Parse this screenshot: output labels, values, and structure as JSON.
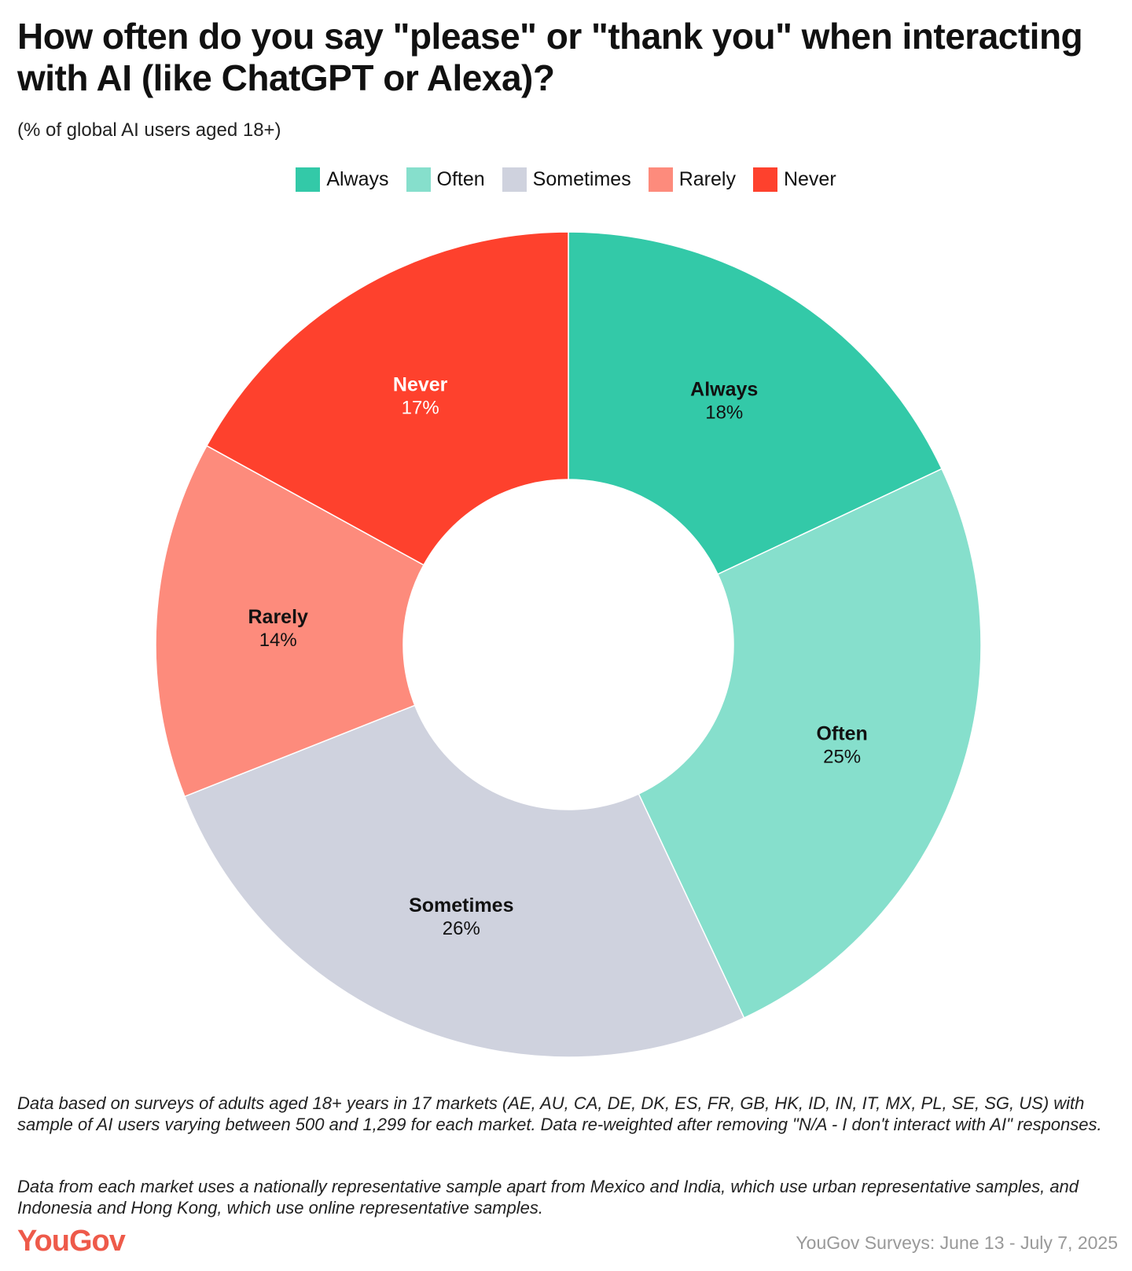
{
  "chart_data": {
    "type": "pie",
    "donut": true,
    "title": "How often do you say \"please\" or \"thank you\" when interacting with AI (like ChatGPT or Alexa)?",
    "subtitle": "(% of global AI users aged 18+)",
    "legend_position": "top-center",
    "categories": [
      "Always",
      "Often",
      "Sometimes",
      "Rarely",
      "Never"
    ],
    "values": [
      18,
      25,
      26,
      14,
      17
    ],
    "labels": [
      "18%",
      "25%",
      "26%",
      "14%",
      "17%"
    ],
    "colors": [
      "#33c9a8",
      "#86dfcc",
      "#cfd2de",
      "#fd8b7c",
      "#fe412d"
    ]
  },
  "footnotes": [
    "Data based on surveys of adults aged 18+ years in 17 markets (AE, AU, CA, DE, DK, ES, FR, GB, HK, ID, IN, IT, MX, PL, SE, SG, US) with sample of AI users varying between 500 and 1,299 for each market. Data re-weighted after removing \"N/A - I don't interact with AI\" responses.",
    "Data from each market uses a nationally representative sample apart from Mexico and India, which use urban representative samples, and Indonesia and Hong Kong, which use online representative samples."
  ],
  "logo": "YouGov",
  "source": "YouGov Surveys: June 13 - July 7, 2025"
}
